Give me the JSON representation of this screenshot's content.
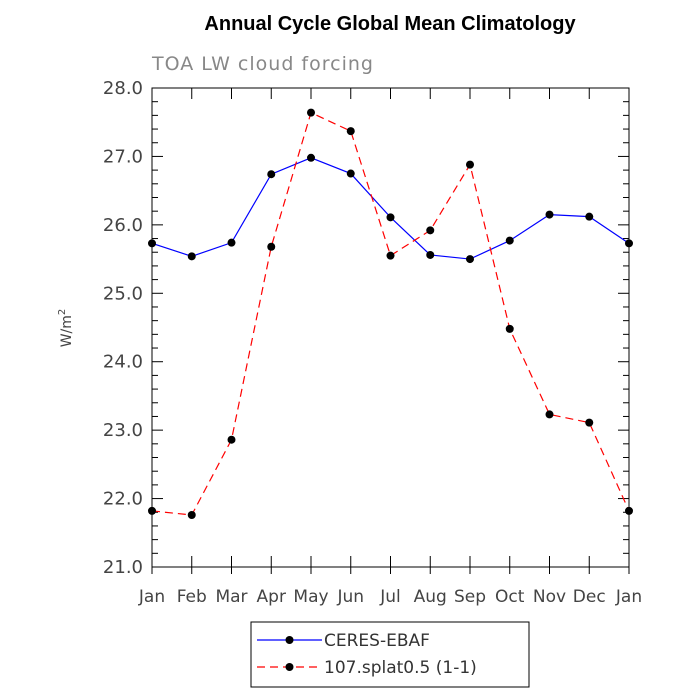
{
  "chart_data": {
    "type": "line",
    "title": "Annual Cycle Global Mean Climatology",
    "subtitle": "TOA LW cloud forcing",
    "xlabel": "",
    "ylabel": "W/m",
    "ylabel_superscript": "2",
    "categories": [
      "Jan",
      "Feb",
      "Mar",
      "Apr",
      "May",
      "Jun",
      "Jul",
      "Aug",
      "Sep",
      "Oct",
      "Nov",
      "Dec",
      "Jan"
    ],
    "ylim": [
      21.0,
      28.0
    ],
    "yticks": [
      "21.0",
      "22.0",
      "23.0",
      "24.0",
      "25.0",
      "26.0",
      "27.0",
      "28.0"
    ],
    "grid": false,
    "legend_position": "bottom-center",
    "series": [
      {
        "name": "CERES-EBAF",
        "color": "#0000ff",
        "dash": "solid",
        "marker": "filled-circle",
        "values": [
          25.73,
          25.54,
          25.74,
          26.74,
          26.98,
          26.75,
          26.11,
          25.56,
          25.5,
          25.77,
          26.15,
          26.12,
          25.73
        ]
      },
      {
        "name": "107.splat0.5 (1-1)",
        "color": "#ff0000",
        "dash": "dashed",
        "marker": "filled-circle",
        "values": [
          21.82,
          21.76,
          22.86,
          25.68,
          27.64,
          27.37,
          25.55,
          25.92,
          26.88,
          24.48,
          23.23,
          23.11,
          21.82
        ]
      }
    ]
  }
}
